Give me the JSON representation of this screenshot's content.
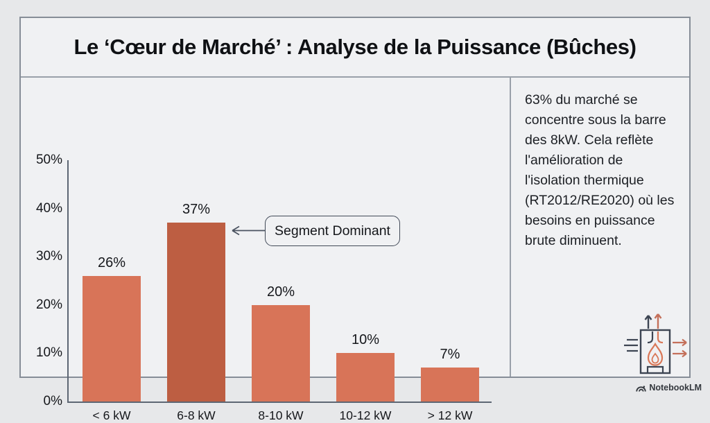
{
  "page": {
    "title": "Le ‘Cœur de Marché’ : Analyse de la Puissance (Bûches)",
    "watermark": "NotebookLM"
  },
  "insight_panel": {
    "text_lines": [
      "63% du marché se",
      "concentre sous la barre",
      "des 8kW. Cela reflète",
      "l'amélioration de",
      "l'isolation thermique",
      "(RT2012/RE2020) où les",
      "besoins en puissance",
      "brute diminuent."
    ]
  },
  "chart_data": {
    "type": "bar",
    "title": "Le ‘Cœur de Marché’ : Analyse de la Puissance (Bûches)",
    "categories": [
      "< 6 kW",
      "6-8 kW",
      "8-10 kW",
      "10-12 kW",
      "> 12 kW"
    ],
    "values": [
      26,
      37,
      20,
      10,
      7
    ],
    "value_labels": [
      "26%",
      "37%",
      "20%",
      "10%",
      "7%"
    ],
    "xlabel": "",
    "ylabel": "",
    "ylim": [
      0,
      50
    ],
    "y_ticks": [
      0,
      10,
      20,
      30,
      40,
      50
    ],
    "y_tick_suffix": "%",
    "grid": false,
    "legend": false,
    "bar_color": "#d87458",
    "highlight_color": "#bd5e42",
    "highlight_index": 1,
    "annotation": {
      "text": "Segment Dominant",
      "target_category": "6-8 kW"
    }
  },
  "colors": {
    "canvas_bg": "#e7e8ea",
    "panel_bg": "#f0f1f3",
    "frame_border": "#868d97",
    "divider": "#99a0a9",
    "axis": "#5d6673",
    "text_dark": "#15171b",
    "accent_orange": "#d87458",
    "accent_dark_orange": "#bd5e42",
    "icon_dark": "#3c4452"
  },
  "icons": {
    "stove_icon": "stove-airflow-icon",
    "logo_icon": "notebooklm-logo-icon",
    "arrow": "left-arrow-icon"
  }
}
